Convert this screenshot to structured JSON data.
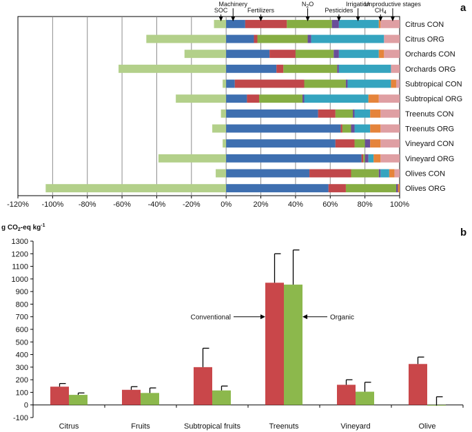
{
  "colors": {
    "SOC": "#b3d08a",
    "Machinery": "#3e6fb0",
    "Fertilizers": "#c0474a",
    "N2O": "#86ad43",
    "Pesticides": "#6a4e99",
    "Irrigation": "#35a4bf",
    "CH4": "#e5843b",
    "Unproductive stages": "#df9fa3",
    "conventional": "#c9474a",
    "organic": "#8cb84c",
    "grid": "#8c8c8c",
    "axis": "#000000"
  },
  "chart_data": [
    {
      "panel": "a",
      "type": "bar",
      "orientation": "horizontal-stacked",
      "xlim": [
        -120,
        100
      ],
      "xticks": [
        "-120%",
        "-100%",
        "-80%",
        "-60%",
        "-40%",
        "-20%",
        "0%",
        "20%",
        "40%",
        "60%",
        "80%",
        "100%"
      ],
      "xtick_values": [
        -120,
        -100,
        -80,
        -60,
        -40,
        -20,
        0,
        20,
        40,
        60,
        80,
        100
      ],
      "grid": true,
      "legend_markers": [
        {
          "name": "SOC",
          "label": "SOC",
          "at": -3
        },
        {
          "name": "Machinery",
          "label": "Machinery",
          "at": 4
        },
        {
          "name": "Fertilizers",
          "label": "Fertilizers",
          "at": 20
        },
        {
          "name": "N2O",
          "label_prefix": "N",
          "label_sub": "2",
          "label_suffix": "O",
          "at": 47
        },
        {
          "name": "Pesticides",
          "label": "Pesticides",
          "at": 65
        },
        {
          "name": "Irrigation",
          "label": "Irrigation",
          "at": 76
        },
        {
          "name": "CH4",
          "label_prefix": "CH",
          "label_sub": "4",
          "label_suffix": "",
          "at": 89
        },
        {
          "name": "Unproductive stages",
          "label": "Unproductive stages",
          "at": 96
        }
      ],
      "segment_order": [
        "Machinery",
        "Fertilizers",
        "N2O",
        "Pesticides",
        "Irrigation",
        "CH4",
        "Unproductive stages"
      ],
      "categories": [
        "Citrus CON",
        "Citrus ORG",
        "Orchards CON",
        "Orchards ORG",
        "Subtropical CON",
        "Subtropical ORG",
        "Treenuts CON",
        "Treenuts ORG",
        "Vineyard CON",
        "Vineyard ORG",
        "Olives CON",
        "Olives ORG"
      ],
      "series": [
        {
          "name": "SOC",
          "values": [
            -7,
            -46,
            -24,
            -62,
            -2,
            -29,
            -3,
            -8,
            -2,
            -39,
            -6,
            -104
          ]
        },
        {
          "name": "Machinery",
          "values": [
            11,
            16,
            25,
            29,
            5,
            12,
            53,
            66,
            63,
            78,
            48,
            59
          ]
        },
        {
          "name": "Fertilizers",
          "values": [
            24,
            2,
            15,
            4,
            40,
            7,
            10,
            1,
            11,
            1,
            24,
            10
          ]
        },
        {
          "name": "N2O",
          "values": [
            26,
            29,
            22,
            31,
            24,
            25,
            10,
            5,
            6,
            1,
            16,
            29
          ]
        },
        {
          "name": "Pesticides",
          "values": [
            4,
            2,
            3,
            1,
            1,
            1,
            1,
            2,
            3,
            2,
            1,
            1
          ]
        },
        {
          "name": "Irrigation",
          "values": [
            23,
            42,
            23,
            30,
            25,
            37,
            9,
            9,
            0,
            3,
            5,
            0
          ]
        },
        {
          "name": "CH4",
          "values": [
            1,
            0,
            3,
            0,
            3,
            6,
            6,
            6,
            6,
            4,
            3,
            1
          ]
        },
        {
          "name": "Unproductive stages",
          "values": [
            11,
            9,
            9,
            5,
            2,
            12,
            11,
            11,
            11,
            11,
            3,
            0
          ]
        }
      ]
    },
    {
      "panel": "b",
      "type": "bar",
      "ylabel_prefix": "g CO",
      "ylabel_sub": "2",
      "ylabel_suffix": "-eq kg",
      "ylabel_sup": "-1",
      "ylim": [
        -100,
        1300
      ],
      "yticks": [
        -100,
        0,
        100,
        200,
        300,
        400,
        500,
        600,
        700,
        800,
        900,
        1000,
        1100,
        1200,
        1300
      ],
      "grid": false,
      "categories": [
        "Citrus",
        "Fruits",
        "Subtropical fruits",
        "Treenuts",
        "Vineyard",
        "Olive"
      ],
      "series": [
        {
          "name": "Conventional",
          "values": [
            145,
            120,
            300,
            970,
            160,
            325
          ],
          "errors": [
            25,
            25,
            150,
            230,
            40,
            55
          ]
        },
        {
          "name": "Organic",
          "values": [
            80,
            95,
            115,
            955,
            105,
            -5
          ],
          "errors": [
            15,
            40,
            35,
            275,
            75,
            70
          ]
        }
      ],
      "annotations": [
        {
          "text": "Conventional",
          "arrow_to": "Treenuts Conventional",
          "at_value": 700
        },
        {
          "text": "Organic",
          "arrow_to": "Treenuts Organic",
          "at_value": 700
        }
      ]
    }
  ]
}
